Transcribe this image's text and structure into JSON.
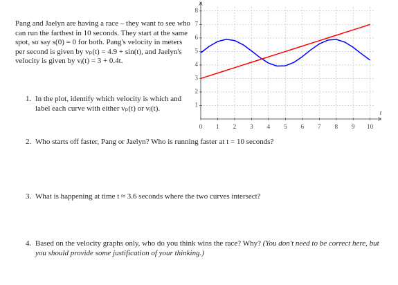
{
  "intro": "Pang and Jaelyn are having a race – they want to see who can run the farthest in 10 seconds. They start at the same spot, so say s(0) = 0 for both. Pang's velocity in meters per second is given by vₚ(t) = 4.9 + sin(t), and Jaelyn's velocity is given by vⱼ(t) = 3 + 0.4t.",
  "questions": [
    {
      "number": "1.",
      "text": "In the plot, identify which velocity is which and label each curve with either vₚ(t) or vⱼ(t)."
    },
    {
      "number": "2.",
      "text": "Who starts off faster, Pang or Jaelyn? Who is running faster at t = 10 seconds?"
    },
    {
      "number": "3.",
      "text": "What is happening at time t ≈ 3.6 seconds where the two curves intersect?"
    },
    {
      "number": "4.",
      "text": "Based on the velocity graphs only, who do you think wins the race? Why?",
      "note": "(You don't need to be correct here, but you should provide some justification of your thinking.)"
    }
  ],
  "chart_data": {
    "type": "line",
    "xlabel": "t",
    "ylabel": "v",
    "x": [
      0,
      0.5,
      1,
      1.5,
      2,
      2.5,
      3,
      3.5,
      4,
      4.5,
      5,
      5.5,
      6,
      6.5,
      7,
      7.5,
      8,
      8.5,
      9,
      9.5,
      10
    ],
    "series": [
      {
        "color": "#0000ff",
        "values": [
          4.9,
          5.38,
          5.74,
          5.9,
          5.81,
          5.5,
          5.04,
          4.55,
          4.14,
          3.92,
          3.94,
          4.19,
          4.62,
          5.12,
          5.56,
          5.84,
          5.89,
          5.7,
          5.31,
          4.82,
          4.36
        ]
      },
      {
        "color": "#ff0000",
        "values": [
          3,
          3.2,
          3.4,
          3.6,
          3.8,
          4,
          4.2,
          4.4,
          4.6,
          4.8,
          5,
          5.2,
          5.4,
          5.6,
          5.8,
          6,
          6.2,
          6.4,
          6.6,
          6.8,
          7
        ]
      }
    ],
    "xlim": [
      0,
      10.3
    ],
    "ylim": [
      0,
      8.3
    ],
    "xticks": [
      0,
      1,
      2,
      3,
      4,
      5,
      6,
      7,
      8,
      9,
      10
    ],
    "yticks": [
      1,
      2,
      3,
      4,
      5,
      6,
      7,
      8
    ],
    "grid": true
  }
}
